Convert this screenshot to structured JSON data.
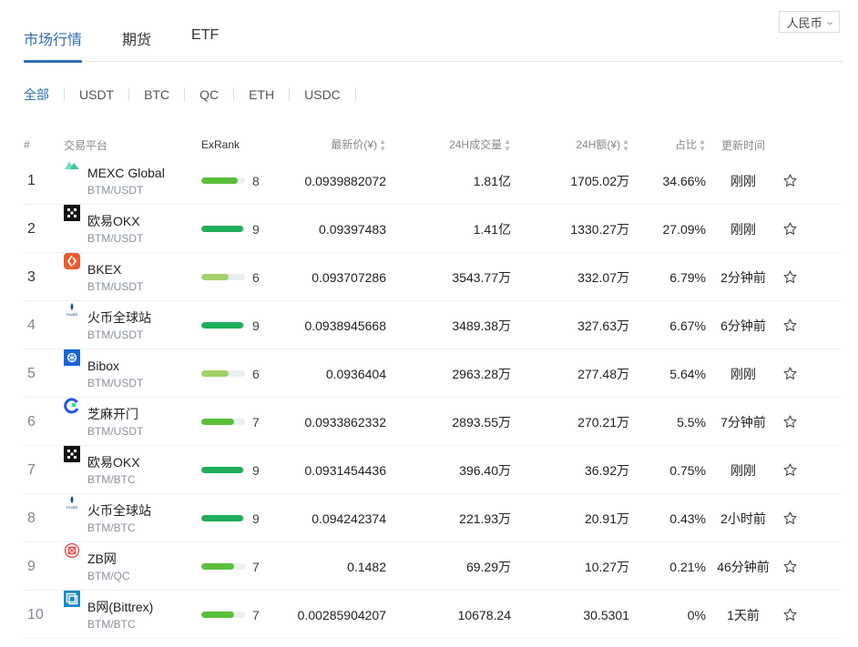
{
  "tabs": [
    {
      "label": "市场行情",
      "active": true
    },
    {
      "label": "期货",
      "active": false
    },
    {
      "label": "ETF",
      "active": false
    }
  ],
  "currency": {
    "label": "人民币",
    "icon": "chevron-down-icon"
  },
  "filters": [
    {
      "label": "全部",
      "active": true
    },
    {
      "label": "USDT",
      "active": false
    },
    {
      "label": "BTC",
      "active": false
    },
    {
      "label": "QC",
      "active": false
    },
    {
      "label": "ETH",
      "active": false
    },
    {
      "label": "USDC",
      "active": false
    }
  ],
  "columns": {
    "rank": "#",
    "platform": "交易平台",
    "exrank": "ExRank",
    "price": "最新价(¥)",
    "volume": "24H成交量",
    "amount": "24H额(¥)",
    "share": "占比",
    "updated": "更新时间",
    "sort_icon": "sort-icon"
  },
  "colors": {
    "accent": "#2f6db5",
    "bar_high": "#1fae5a",
    "bar_mid": "#5cbf3a",
    "bar_low": "#a3d068",
    "bar_track": "#eceef1"
  },
  "rows": [
    {
      "rank": "1",
      "name": "MEXC Global",
      "pair": "BTM/USDT",
      "logo": "mexc-logo-icon",
      "exrank": "8",
      "price": "0.0939882072",
      "volume": "1.81亿",
      "amount": "1705.02万",
      "share": "34.66%",
      "updated": "刚刚"
    },
    {
      "rank": "2",
      "name": "欧易OKX",
      "pair": "BTM/USDT",
      "logo": "okx-logo-icon",
      "exrank": "9",
      "price": "0.09397483",
      "volume": "1.41亿",
      "amount": "1330.27万",
      "share": "27.09%",
      "updated": "刚刚"
    },
    {
      "rank": "3",
      "name": "BKEX",
      "pair": "BTM/USDT",
      "logo": "bkex-logo-icon",
      "exrank": "6",
      "price": "0.093707286",
      "volume": "3543.77万",
      "amount": "332.07万",
      "share": "6.79%",
      "updated": "2分钟前"
    },
    {
      "rank": "4",
      "name": "火币全球站",
      "pair": "BTM/USDT",
      "logo": "huobi-logo-icon",
      "exrank": "9",
      "price": "0.0938945668",
      "volume": "3489.38万",
      "amount": "327.63万",
      "share": "6.67%",
      "updated": "6分钟前"
    },
    {
      "rank": "5",
      "name": "Bibox",
      "pair": "BTM/USDT",
      "logo": "bibox-logo-icon",
      "exrank": "6",
      "price": "0.0936404",
      "volume": "2963.28万",
      "amount": "277.48万",
      "share": "5.64%",
      "updated": "刚刚"
    },
    {
      "rank": "6",
      "name": "芝麻开门",
      "pair": "BTM/USDT",
      "logo": "gateio-logo-icon",
      "exrank": "7",
      "price": "0.0933862332",
      "volume": "2893.55万",
      "amount": "270.21万",
      "share": "5.5%",
      "updated": "7分钟前"
    },
    {
      "rank": "7",
      "name": "欧易OKX",
      "pair": "BTM/BTC",
      "logo": "okx-logo-icon",
      "exrank": "9",
      "price": "0.0931454436",
      "volume": "396.40万",
      "amount": "36.92万",
      "share": "0.75%",
      "updated": "刚刚"
    },
    {
      "rank": "8",
      "name": "火币全球站",
      "pair": "BTM/BTC",
      "logo": "huobi-logo-icon",
      "exrank": "9",
      "price": "0.094242374",
      "volume": "221.93万",
      "amount": "20.91万",
      "share": "0.43%",
      "updated": "2小时前"
    },
    {
      "rank": "9",
      "name": "ZB网",
      "pair": "BTM/QC",
      "logo": "zb-logo-icon",
      "exrank": "7",
      "price": "0.1482",
      "volume": "69.29万",
      "amount": "10.27万",
      "share": "0.21%",
      "updated": "46分钟前"
    },
    {
      "rank": "10",
      "name": "B网(Bittrex)",
      "pair": "BTM/BTC",
      "logo": "bittrex-logo-icon",
      "exrank": "7",
      "price": "0.00285904207",
      "volume": "10678.24",
      "amount": "30.5301",
      "share": "0%",
      "updated": "1天前"
    }
  ],
  "row_action_icon": "star-icon"
}
